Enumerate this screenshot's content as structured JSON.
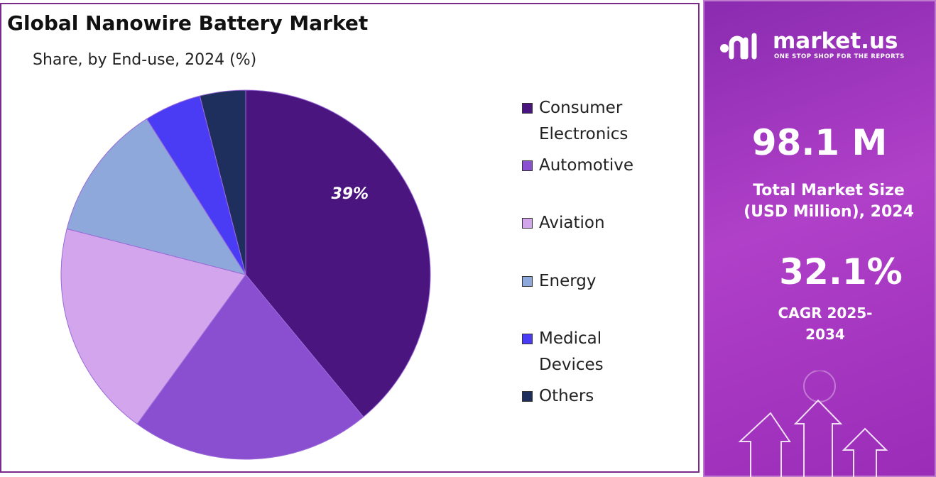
{
  "chart_data": {
    "type": "pie",
    "title": "Global Nanowire Battery Market",
    "subtitle": "Share, by End-use, 2024 (%)",
    "categories": [
      "Consumer Electronics",
      "Automotive",
      "Aviation",
      "Energy",
      "Medical Devices",
      "Others"
    ],
    "values": [
      39,
      21,
      19,
      12,
      5,
      4
    ],
    "value_labels": [
      "39%",
      null,
      null,
      null,
      null,
      null
    ],
    "colors": [
      "#4b1580",
      "#8a4fd0",
      "#d3a5ec",
      "#8fa8dc",
      "#4a3cf5",
      "#1e2f5e"
    ],
    "legend": "right"
  },
  "side_panel": {
    "brand": "market.us",
    "tagline": "ONE STOP SHOP FOR THE REPORTS",
    "market_size": "98.1 M",
    "market_size_label": "Total Market Size (USD Million), 2024",
    "cagr": "32.1%",
    "cagr_label": "CAGR 2025-2034"
  }
}
